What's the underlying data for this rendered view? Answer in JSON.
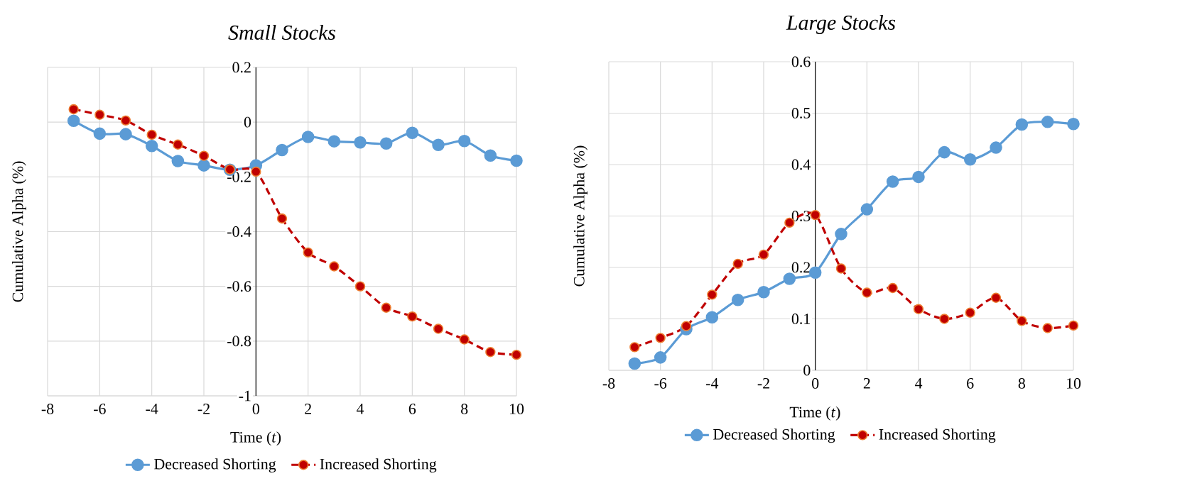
{
  "chart_data": [
    {
      "type": "line",
      "title": "Small Stocks",
      "xlabel": "Time (*t*)",
      "ylabel": "Cumulative Alpha (%)",
      "x": [
        -7,
        -6,
        -5,
        -4,
        -3,
        -2,
        -1,
        0,
        1,
        2,
        3,
        4,
        5,
        6,
        7,
        8,
        9,
        10
      ],
      "xlim": [
        -8,
        10
      ],
      "xticks": [
        -8,
        -6,
        -4,
        -2,
        0,
        2,
        4,
        6,
        8,
        10
      ],
      "ylim": [
        -1,
        0.2
      ],
      "yticks": [
        -1,
        -0.8,
        -0.6,
        -0.4,
        -0.2,
        0,
        0.2
      ],
      "grid": true,
      "legend": "bottom",
      "marker": "circle",
      "series": [
        {
          "name": "Decreased Shorting",
          "color": "#5b9bd5",
          "line_style": "solid",
          "values": [
            0.005,
            -0.042,
            -0.044,
            -0.087,
            -0.142,
            -0.158,
            -0.174,
            -0.158,
            -0.102,
            -0.054,
            -0.07,
            -0.074,
            -0.078,
            -0.039,
            -0.083,
            -0.069,
            -0.122,
            -0.141
          ]
        },
        {
          "name": "Increased Shorting",
          "color": "#c00000",
          "line_style": "dashed",
          "values": [
            0.047,
            0.027,
            0.006,
            -0.046,
            -0.082,
            -0.123,
            -0.173,
            -0.181,
            -0.352,
            -0.476,
            -0.527,
            -0.6,
            -0.678,
            -0.71,
            -0.755,
            -0.794,
            -0.84,
            -0.85
          ]
        }
      ]
    },
    {
      "type": "line",
      "title": "Large Stocks",
      "xlabel": "Time (*t*)",
      "ylabel": "Cumulative Alpha (%)",
      "x": [
        -7,
        -6,
        -5,
        -4,
        -3,
        -2,
        -1,
        0,
        1,
        2,
        3,
        4,
        5,
        6,
        7,
        8,
        9,
        10
      ],
      "xlim": [
        -8,
        10
      ],
      "xticks": [
        -8,
        -6,
        -4,
        -2,
        0,
        2,
        4,
        6,
        8,
        10
      ],
      "ylim": [
        0,
        0.6
      ],
      "yticks": [
        0,
        0.1,
        0.2,
        0.3,
        0.4,
        0.5,
        0.6
      ],
      "grid": true,
      "legend": "bottom",
      "marker": "circle",
      "series": [
        {
          "name": "Decreased Shorting",
          "color": "#5b9bd5",
          "line_style": "solid",
          "values": [
            0.013,
            0.025,
            0.08,
            0.103,
            0.137,
            0.152,
            0.178,
            0.19,
            0.265,
            0.313,
            0.367,
            0.376,
            0.424,
            0.41,
            0.433,
            0.478,
            0.483,
            0.479
          ]
        },
        {
          "name": "Increased Shorting",
          "color": "#c00000",
          "line_style": "dashed",
          "values": [
            0.045,
            0.063,
            0.086,
            0.147,
            0.207,
            0.225,
            0.287,
            0.302,
            0.198,
            0.151,
            0.16,
            0.119,
            0.1,
            0.112,
            0.141,
            0.096,
            0.082,
            0.087
          ]
        }
      ]
    }
  ]
}
